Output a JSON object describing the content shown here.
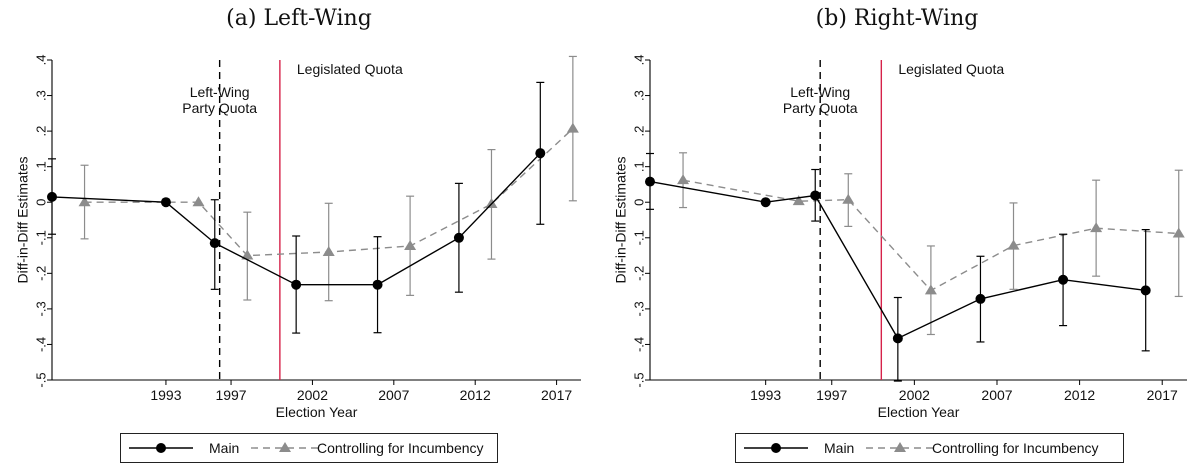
{
  "panels": [
    {
      "title": "(a) Left-Wing",
      "ylabel": "Diff-in-Diff Estimates",
      "xlabel": "Election Year",
      "ylim": [
        -0.5,
        0.4
      ],
      "yticks": [
        0.4,
        0.3,
        0.2,
        0.1,
        0,
        -0.1,
        -0.2,
        -0.3,
        -0.4,
        -0.5
      ],
      "ytick_labels": [
        ".4",
        ".3",
        ".2",
        ".1",
        "0",
        "-.1",
        "-.2",
        "-.3",
        "-.4",
        "-.5"
      ],
      "xticks": [
        1993,
        1997,
        2002,
        2007,
        2012,
        2017
      ],
      "xtick_labels": [
        "1993",
        "1997",
        "2002",
        "2007",
        "2012",
        "2017"
      ],
      "party_quota_label": [
        "Left-Wing",
        "Party Quota"
      ],
      "legislated_quota_label": "Legislated Quota"
    },
    {
      "title": "(b) Right-Wing",
      "ylabel": "Diff-in-Diff Estimates",
      "xlabel": "Election Year",
      "ylim": [
        -0.5,
        0.4
      ],
      "yticks": [
        0.4,
        0.3,
        0.2,
        0.1,
        0,
        -0.1,
        -0.2,
        -0.3,
        -0.4,
        -0.5
      ],
      "ytick_labels": [
        ".4",
        ".3",
        ".2",
        ".1",
        "0",
        "-.1",
        "-.2",
        "-.3",
        "-.4",
        "-.5"
      ],
      "xticks": [
        1993,
        1997,
        2002,
        2007,
        2012,
        2017
      ],
      "xtick_labels": [
        "1993",
        "1997",
        "2002",
        "2007",
        "2012",
        "2017"
      ],
      "party_quota_label": [
        "Left-Wing",
        "Party Quota"
      ],
      "legislated_quota_label": "Legislated Quota"
    }
  ],
  "legend": {
    "main_label": "Main",
    "incumbency_label": "Controlling for Incumbency"
  },
  "colors": {
    "main": "#000000",
    "incumbency": "#8c8c8c",
    "legislated_quota_line": "#d6224a",
    "party_quota_line": "#000000",
    "axis": "#000000"
  },
  "chart_data": [
    {
      "type": "line",
      "title": "(a) Left-Wing",
      "xlabel": "Election Year",
      "ylabel": "Diff-in-Diff Estimates",
      "xlim": [
        1986,
        2018.5
      ],
      "ylim": [
        -0.5,
        0.4
      ],
      "grid": false,
      "legend_position": "bottom",
      "reference_lines": [
        {
          "label": "Left-Wing Party Quota",
          "x": 1996.3,
          "style": "dashed"
        },
        {
          "label": "Legislated Quota",
          "x": 2000.0,
          "style": "solid"
        }
      ],
      "series": [
        {
          "name": "Main",
          "x": [
            1986,
            1993,
            1996,
            2001,
            2006,
            2011,
            2016
          ],
          "y": [
            0.015,
            0.0,
            -0.115,
            -0.232,
            -0.232,
            -0.1,
            0.138
          ],
          "ci_low": [
            -0.09,
            0.0,
            -0.245,
            -0.368,
            -0.367,
            -0.253,
            -0.062
          ],
          "ci_high": [
            0.122,
            0.0,
            0.007,
            -0.095,
            -0.097,
            0.053,
            0.337
          ]
        },
        {
          "name": "Controlling for Incumbency",
          "x": [
            1988,
            1995,
            1998,
            2003,
            2008,
            2013,
            2018
          ],
          "y": [
            0.0,
            0.0,
            -0.15,
            -0.14,
            -0.123,
            -0.005,
            0.207
          ],
          "ci_low": [
            -0.103,
            0.0,
            -0.275,
            -0.277,
            -0.262,
            -0.16,
            0.004
          ],
          "ci_high": [
            0.104,
            0.0,
            -0.028,
            -0.003,
            0.017,
            0.148,
            0.41
          ]
        }
      ]
    },
    {
      "type": "line",
      "title": "(b) Right-Wing",
      "xlabel": "Election Year",
      "ylabel": "Diff-in-Diff Estimates",
      "xlim": [
        1986,
        2018.5
      ],
      "ylim": [
        -0.5,
        0.4
      ],
      "grid": false,
      "legend_position": "bottom",
      "reference_lines": [
        {
          "label": "Left-Wing Party Quota",
          "x": 1996.3,
          "style": "dashed"
        },
        {
          "label": "Legislated Quota",
          "x": 2000.0,
          "style": "solid"
        }
      ],
      "series": [
        {
          "name": "Main",
          "x": [
            1986,
            1993,
            1996,
            2001,
            2006,
            2011,
            2016
          ],
          "y": [
            0.058,
            0.0,
            0.019,
            -0.383,
            -0.272,
            -0.218,
            -0.248
          ],
          "ci_low": [
            -0.02,
            0.0,
            -0.053,
            -0.503,
            -0.393,
            -0.347,
            -0.418
          ],
          "ci_high": [
            0.137,
            0.0,
            0.092,
            -0.268,
            -0.152,
            -0.09,
            -0.077
          ]
        },
        {
          "name": "Controlling for Incumbency",
          "x": [
            1988,
            1995,
            1998,
            2003,
            2008,
            2013,
            2018
          ],
          "y": [
            0.062,
            0.003,
            0.007,
            -0.248,
            -0.122,
            -0.073,
            -0.088
          ],
          "ci_low": [
            -0.015,
            0.003,
            -0.068,
            -0.372,
            -0.245,
            -0.208,
            -0.265
          ],
          "ci_high": [
            0.139,
            0.003,
            0.08,
            -0.123,
            -0.002,
            0.062,
            0.09
          ]
        }
      ]
    }
  ]
}
